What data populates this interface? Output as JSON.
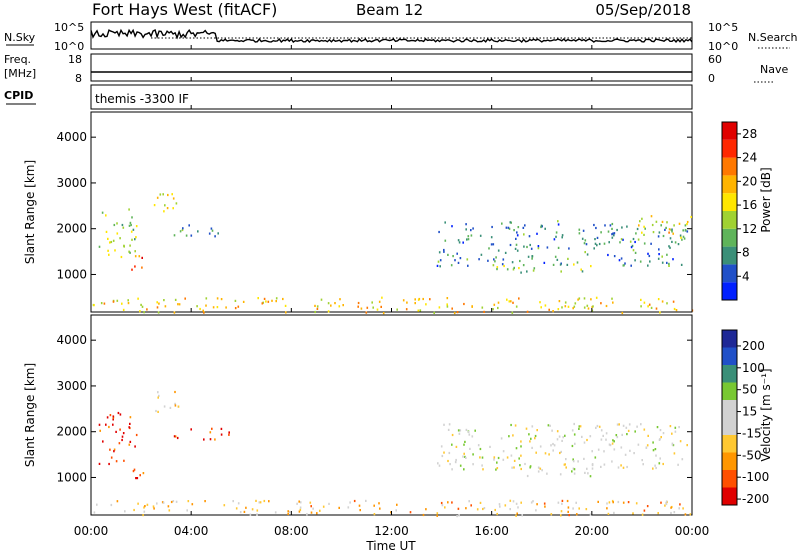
{
  "header": {
    "station": "Fort Hays West (fitACF)",
    "beam": "Beam 12",
    "date": "05/Sep/2018"
  },
  "top_panels": {
    "nsky_label": "N.Sky",
    "nsearch_label": "N.Search",
    "nsky_ticks": [
      "10^5",
      "10^0"
    ],
    "nsearch_ticks": [
      "10^5",
      "10^0"
    ],
    "freq_label_line1": "Freq.",
    "freq_label_line2": "[MHz]",
    "freq_ticks": [
      "18",
      "8"
    ],
    "nave_label": "Nave",
    "nave_ticks": [
      "60",
      "0"
    ],
    "cpid_label": "CPID",
    "cpid_text": "themis -3300 IF"
  },
  "colors": {
    "power": [
      "#0020ff",
      "#2050c8",
      "#3a8f78",
      "#5fb45a",
      "#a0d232",
      "#ffe600",
      "#ffb400",
      "#ff7800",
      "#ff2800",
      "#e00000"
    ],
    "velocity": [
      "#e00000",
      "#ff5000",
      "#ff9600",
      "#ffc832",
      "#d2d2d2",
      "#d2d2d2",
      "#78c832",
      "#3a8f78",
      "#2050c8",
      "#1e2896"
    ]
  },
  "chart_data": [
    {
      "type": "heatmap",
      "title": "",
      "xlabel": "",
      "ylabel": "Slant Range [km]",
      "xlim": [
        "00:00",
        "24:00"
      ],
      "ylim": [
        180,
        4550
      ],
      "yticks": [
        "1000",
        "2000",
        "3000",
        "4000"
      ],
      "colorbar": {
        "label": "Power [dB]",
        "range": [
          0,
          30
        ],
        "ticks": [
          "4",
          "8",
          "12",
          "16",
          "20",
          "24",
          "28"
        ]
      },
      "scatter_regions": [
        {
          "t": [
            0.3,
            1.8
          ],
          "r": [
            1300,
            2450
          ],
          "level": 0.45
        },
        {
          "t": [
            1.6,
            2.1
          ],
          "r": [
            950,
            1500
          ],
          "level": 0.75
        },
        {
          "t": [
            2.5,
            3.6
          ],
          "r": [
            2400,
            2950
          ],
          "level": 0.5
        },
        {
          "t": [
            3.0,
            5.5
          ],
          "r": [
            1850,
            2100
          ],
          "level": 0.25
        },
        {
          "t": [
            13.8,
            23.8
          ],
          "r": [
            1200,
            2200
          ],
          "level": 0.25
        },
        {
          "t": [
            16.0,
            20.2
          ],
          "r": [
            1050,
            1250
          ],
          "level": 0.4
        },
        {
          "t": [
            21.8,
            24.0
          ],
          "r": [
            1800,
            2300
          ],
          "level": 0.55
        },
        {
          "t": [
            0.0,
            24.0
          ],
          "r": [
            180,
            520
          ],
          "level": 0.6
        }
      ]
    },
    {
      "type": "heatmap",
      "title": "",
      "xlabel": "Time UT",
      "ylabel": "Slant Range [km]",
      "xlim": [
        "00:00",
        "24:00"
      ],
      "ylim": [
        180,
        4550
      ],
      "xticks": [
        "00:00",
        "04:00",
        "08:00",
        "12:00",
        "16:00",
        "20:00",
        "00:00"
      ],
      "yticks": [
        "1000",
        "2000",
        "3000",
        "4000"
      ],
      "colorbar": {
        "label": "Velocity [m s⁻¹]",
        "range": [
          -250,
          250
        ],
        "ticks": [
          "200",
          "100",
          "50",
          "15",
          "-15",
          "-50",
          "-100",
          "-200"
        ]
      },
      "scatter_regions": [
        {
          "t": [
            0.3,
            1.8
          ],
          "r": [
            1300,
            2450
          ],
          "level": 0.1
        },
        {
          "t": [
            1.6,
            2.1
          ],
          "r": [
            950,
            1500
          ],
          "level": 0.05
        },
        {
          "t": [
            2.5,
            3.6
          ],
          "r": [
            2400,
            2950
          ],
          "level": 0.45
        },
        {
          "t": [
            3.0,
            5.5
          ],
          "r": [
            1850,
            2100
          ],
          "level": 0.1
        },
        {
          "t": [
            13.8,
            23.8
          ],
          "r": [
            1200,
            2200
          ],
          "level": 0.5
        },
        {
          "t": [
            16.0,
            20.2
          ],
          "r": [
            1050,
            1250
          ],
          "level": 0.5
        },
        {
          "t": [
            0.0,
            24.0
          ],
          "r": [
            180,
            520
          ],
          "level": 0.35
        }
      ]
    }
  ]
}
